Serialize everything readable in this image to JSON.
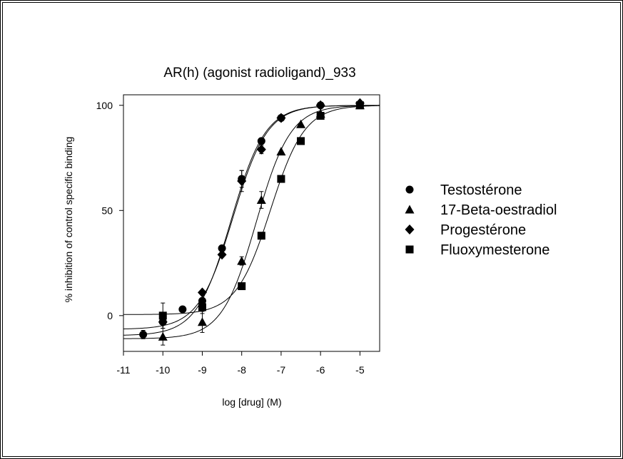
{
  "chart_data": {
    "type": "scatter",
    "title": "AR(h) (agonist radioligand)_933",
    "xlabel": "log [drug]  (M)",
    "ylabel": "% inhibition of  control specific binding",
    "xlim": [
      -11,
      -4.5
    ],
    "ylim": [
      -17,
      105
    ],
    "xticks": [
      "-11",
      "-10",
      "-9",
      "-8",
      "-7",
      "-6",
      "-5"
    ],
    "xtick_values": [
      -11,
      -10,
      -9,
      -8,
      -7,
      -6,
      -5
    ],
    "yticks": [
      "0",
      "50",
      "100"
    ],
    "ytick_values": [
      0,
      50,
      100
    ],
    "grid": false,
    "legend_position": "right",
    "series": [
      {
        "name": "Testostérone",
        "marker": "circle",
        "x": [
          -10.5,
          -10,
          -9.5,
          -9,
          -8.5,
          -8,
          -7.5,
          -7,
          -6
        ],
        "y": [
          -9,
          -3,
          3,
          7,
          32,
          65,
          83,
          94,
          100
        ],
        "err": [
          2,
          3,
          0,
          3,
          0,
          4,
          0,
          0,
          0
        ],
        "fit": {
          "bottom": -9.5,
          "top": 100,
          "logEC50": -8.27,
          "hill": 1.0
        }
      },
      {
        "name": "17-Beta-oestradiol",
        "marker": "triangle",
        "x": [
          -10,
          -9,
          -8,
          -7.5,
          -7,
          -6.5,
          -6,
          -5
        ],
        "y": [
          -10,
          -3,
          26,
          55,
          78,
          91,
          96,
          100
        ],
        "err": [
          4,
          5,
          2,
          4,
          0,
          0,
          0,
          0
        ],
        "fit": {
          "bottom": -11,
          "top": 100,
          "logEC50": -7.63,
          "hill": 1.0
        }
      },
      {
        "name": "Progestérone",
        "marker": "diamond",
        "x": [
          -10,
          -9,
          -8.5,
          -8,
          -7.5,
          -7,
          -6,
          -5
        ],
        "y": [
          -3,
          11,
          29,
          64,
          79,
          94,
          100,
          101
        ],
        "err": [
          0,
          0,
          0,
          5,
          2,
          0,
          0,
          0
        ],
        "fit": {
          "bottom": -6.5,
          "top": 100,
          "logEC50": -8.22,
          "hill": 1.0
        }
      },
      {
        "name": "Fluoxymesterone",
        "marker": "square",
        "x": [
          -10,
          -9,
          -8,
          -7.5,
          -7,
          -6.5,
          -6,
          -5
        ],
        "y": [
          0,
          4,
          14,
          38,
          65,
          83,
          95,
          100
        ],
        "err": [
          6,
          3,
          0,
          0,
          0,
          0,
          0,
          0
        ],
        "fit": {
          "bottom": 0.5,
          "top": 100,
          "logEC50": -7.27,
          "hill": 1.0
        }
      }
    ]
  }
}
